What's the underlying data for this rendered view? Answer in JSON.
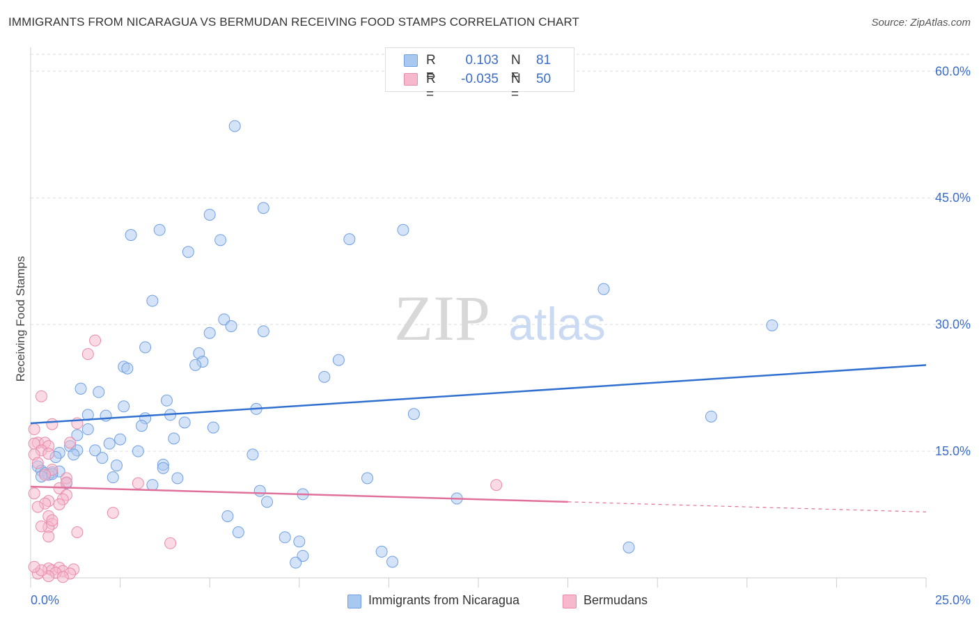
{
  "header": {
    "title": "IMMIGRANTS FROM NICARAGUA VS BERMUDAN RECEIVING FOOD STAMPS CORRELATION CHART",
    "source": "Source: ZipAtlas.com"
  },
  "watermark": {
    "zip": "ZIP",
    "atlas": "atlas"
  },
  "legend": {
    "rows": [
      {
        "r_label": "R =",
        "r_value": "0.103",
        "n_label": "N =",
        "n_value": "81",
        "color": "#a9c8f0"
      },
      {
        "r_label": "R =",
        "r_value": "-0.035",
        "n_label": "N =",
        "n_value": "50",
        "color": "#f6b8cc"
      }
    ]
  },
  "bottom_legend": [
    {
      "label": "Immigrants from Nicaragua",
      "color": "#a9c8f0"
    },
    {
      "label": "Bermudans",
      "color": "#f6b8cc"
    }
  ],
  "colors": {
    "blue_point": "#a9c8f0",
    "blue_stroke": "#6f9fe0",
    "blue_line": "#2f6fd0",
    "pink_point": "#f6b8cc",
    "pink_stroke": "#e88aa8",
    "pink_line": "#e0709a",
    "axis_text": "#3a6cc9",
    "grid": "#dddddd"
  },
  "chart_data": {
    "type": "scatter",
    "title": "IMMIGRANTS FROM NICARAGUA VS BERMUDAN RECEIVING FOOD STAMPS CORRELATION CHART",
    "xlabel": "",
    "ylabel": "Receiving Food Stamps",
    "xlim": [
      0,
      25
    ],
    "ylim": [
      0,
      62
    ],
    "x_tick_labels": [
      "0.0%",
      "25.0%"
    ],
    "y_ticks": [
      15,
      30,
      45,
      60
    ],
    "y_tick_labels": [
      "15.0%",
      "30.0%",
      "45.0%",
      "60.0%"
    ],
    "grid": true,
    "legend_position": "top-center",
    "series": [
      {
        "name": "Immigrants from Nicaragua",
        "points": [
          [
            5.7,
            53.5
          ],
          [
            6.5,
            43.8
          ],
          [
            5.0,
            43.0
          ],
          [
            3.6,
            41.2
          ],
          [
            2.8,
            40.6
          ],
          [
            5.3,
            40.0
          ],
          [
            8.9,
            40.1
          ],
          [
            10.4,
            41.2
          ],
          [
            4.4,
            38.6
          ],
          [
            16.0,
            34.2
          ],
          [
            3.4,
            32.8
          ],
          [
            5.4,
            30.6
          ],
          [
            5.0,
            29.0
          ],
          [
            5.6,
            29.8
          ],
          [
            6.5,
            29.2
          ],
          [
            20.7,
            29.9
          ],
          [
            3.2,
            27.3
          ],
          [
            4.7,
            26.6
          ],
          [
            4.8,
            25.6
          ],
          [
            4.6,
            25.2
          ],
          [
            8.6,
            25.8
          ],
          [
            2.6,
            25.0
          ],
          [
            2.7,
            24.8
          ],
          [
            8.2,
            23.8
          ],
          [
            1.4,
            22.4
          ],
          [
            1.9,
            22.0
          ],
          [
            3.8,
            21.0
          ],
          [
            2.6,
            20.3
          ],
          [
            6.3,
            20.0
          ],
          [
            10.7,
            19.4
          ],
          [
            19.0,
            19.1
          ],
          [
            1.6,
            19.3
          ],
          [
            2.1,
            19.2
          ],
          [
            3.9,
            19.3
          ],
          [
            3.2,
            18.9
          ],
          [
            4.3,
            18.4
          ],
          [
            3.1,
            18.0
          ],
          [
            5.1,
            17.8
          ],
          [
            1.6,
            17.6
          ],
          [
            1.3,
            16.9
          ],
          [
            2.5,
            16.4
          ],
          [
            4.0,
            16.5
          ],
          [
            2.2,
            15.9
          ],
          [
            1.1,
            15.6
          ],
          [
            1.3,
            15.1
          ],
          [
            3.0,
            15.0
          ],
          [
            1.8,
            15.1
          ],
          [
            0.8,
            14.8
          ],
          [
            1.2,
            14.6
          ],
          [
            0.7,
            14.3
          ],
          [
            2.0,
            14.2
          ],
          [
            6.2,
            14.6
          ],
          [
            3.7,
            13.4
          ],
          [
            2.4,
            13.3
          ],
          [
            0.2,
            13.2
          ],
          [
            3.7,
            13.0
          ],
          [
            0.3,
            12.7
          ],
          [
            0.4,
            12.4
          ],
          [
            0.6,
            12.5
          ],
          [
            0.5,
            12.2
          ],
          [
            0.3,
            12.0
          ],
          [
            2.3,
            11.9
          ],
          [
            4.1,
            11.8
          ],
          [
            9.4,
            11.8
          ],
          [
            1.0,
            11.2
          ],
          [
            3.4,
            11.0
          ],
          [
            6.4,
            10.3
          ],
          [
            7.6,
            9.9
          ],
          [
            11.9,
            9.4
          ],
          [
            6.6,
            9.0
          ],
          [
            5.5,
            7.3
          ],
          [
            5.8,
            5.4
          ],
          [
            7.1,
            4.8
          ],
          [
            7.5,
            4.3
          ],
          [
            16.7,
            3.6
          ],
          [
            9.8,
            3.1
          ],
          [
            7.6,
            2.6
          ],
          [
            7.4,
            1.8
          ],
          [
            10.1,
            1.9
          ],
          [
            0.8,
            12.6
          ],
          [
            0.6,
            12.3
          ]
        ],
        "trend": {
          "x": [
            0,
            25
          ],
          "y": [
            18.3,
            25.2
          ]
        }
      },
      {
        "name": "Bermudans",
        "points": [
          [
            1.8,
            28.1
          ],
          [
            1.6,
            26.5
          ],
          [
            0.3,
            21.5
          ],
          [
            1.3,
            18.3
          ],
          [
            0.6,
            18.2
          ],
          [
            0.1,
            17.6
          ],
          [
            0.2,
            16.0
          ],
          [
            1.1,
            16.0
          ],
          [
            0.4,
            16.0
          ],
          [
            0.1,
            15.9
          ],
          [
            0.5,
            15.6
          ],
          [
            0.3,
            15.1
          ],
          [
            0.1,
            14.6
          ],
          [
            0.5,
            14.7
          ],
          [
            0.2,
            13.6
          ],
          [
            0.6,
            12.8
          ],
          [
            0.4,
            12.2
          ],
          [
            1.0,
            11.8
          ],
          [
            1.0,
            11.3
          ],
          [
            3.0,
            11.2
          ],
          [
            13.0,
            11.0
          ],
          [
            0.1,
            10.0
          ],
          [
            0.8,
            10.6
          ],
          [
            1.0,
            9.8
          ],
          [
            0.9,
            9.3
          ],
          [
            0.5,
            9.1
          ],
          [
            0.4,
            8.8
          ],
          [
            0.8,
            8.7
          ],
          [
            0.2,
            8.4
          ],
          [
            2.3,
            7.7
          ],
          [
            0.5,
            7.3
          ],
          [
            0.6,
            6.4
          ],
          [
            0.5,
            6.0
          ],
          [
            0.3,
            6.1
          ],
          [
            0.6,
            6.8
          ],
          [
            1.3,
            5.4
          ],
          [
            0.5,
            4.9
          ],
          [
            3.9,
            4.1
          ],
          [
            0.5,
            1.1
          ],
          [
            0.6,
            0.9
          ],
          [
            0.8,
            1.2
          ],
          [
            0.9,
            0.8
          ],
          [
            1.2,
            1.0
          ],
          [
            0.7,
            0.6
          ],
          [
            0.2,
            0.5
          ],
          [
            1.1,
            0.5
          ],
          [
            0.5,
            0.2
          ],
          [
            0.9,
            0.1
          ],
          [
            0.3,
            0.9
          ],
          [
            0.1,
            1.3
          ]
        ],
        "trend": {
          "x": [
            0,
            15
          ],
          "y": [
            10.8,
            9.0
          ]
        },
        "trend_dashed": {
          "x": [
            15,
            25
          ],
          "y": [
            9.0,
            7.8
          ]
        }
      }
    ]
  }
}
